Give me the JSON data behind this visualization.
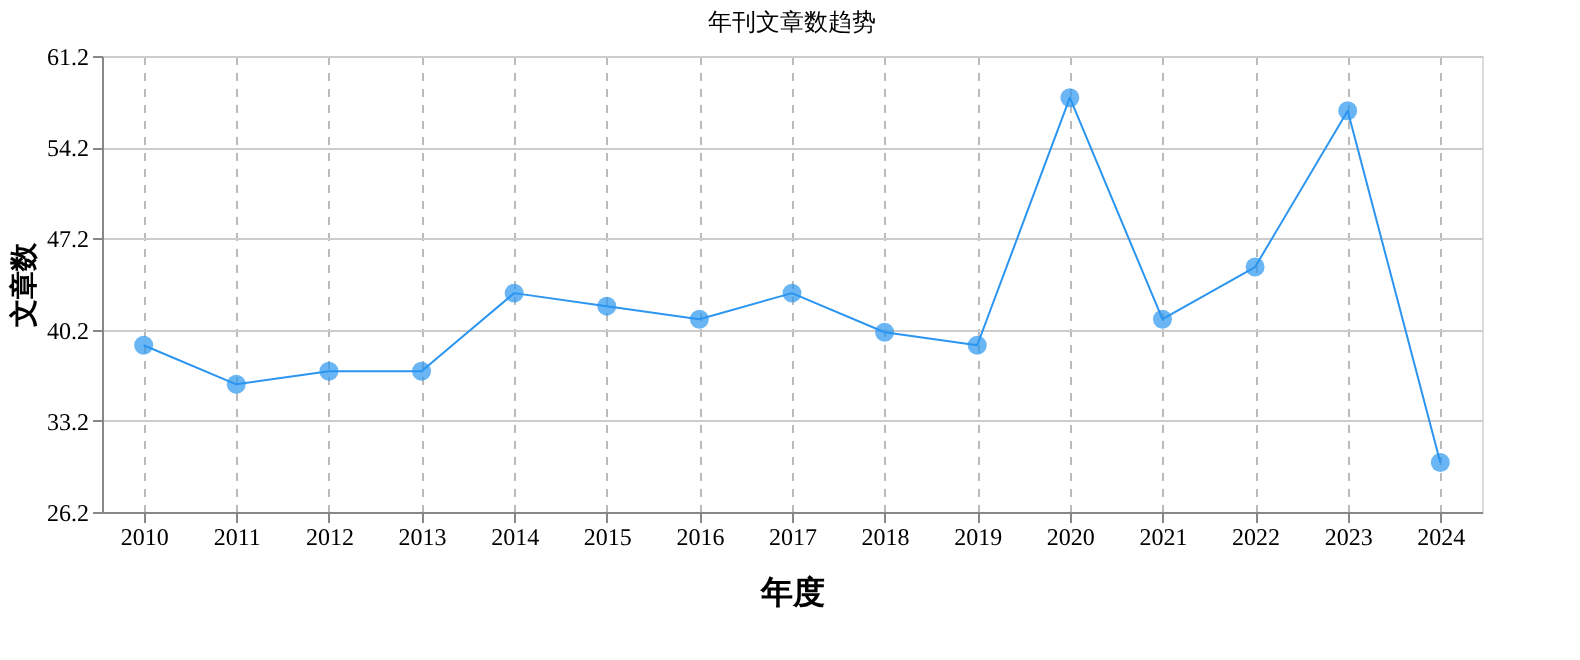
{
  "chart_data": {
    "type": "line",
    "title": "年刊文章数趋势",
    "xlabel": "年度",
    "ylabel": "文章数",
    "categories": [
      "2010",
      "2011",
      "2012",
      "2013",
      "2014",
      "2015",
      "2016",
      "2017",
      "2018",
      "2019",
      "2020",
      "2021",
      "2022",
      "2023",
      "2024"
    ],
    "series": [
      {
        "color": "#2b95f0",
        "values": [
          39,
          36,
          37,
          37,
          43,
          42,
          41,
          43,
          40,
          39,
          58,
          41,
          45,
          57,
          30
        ]
      }
    ],
    "ylim": [
      26.2,
      61.2
    ],
    "yticks": [
      26.2,
      33.2,
      40.2,
      47.2,
      54.2,
      61.2
    ],
    "grid": true,
    "marker": "circle",
    "line_style": "solid"
  }
}
